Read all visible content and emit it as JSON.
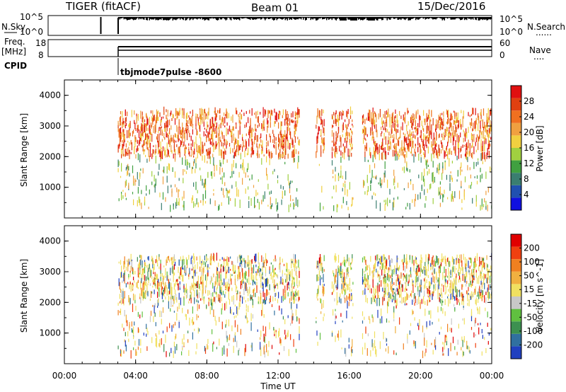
{
  "header": {
    "radar": "TIGER (fitACF)",
    "beam": "Beam 01",
    "date": "15/Dec/2016"
  },
  "labels": {
    "nsky": "N.Sky",
    "nsearch": "N.Search",
    "nsearch_dots": "......",
    "freq": "Freq.",
    "mhz": "[MHz]",
    "nave": "Nave",
    "nave_dots": "....",
    "cpid": "CPID",
    "cpid_value": "tbjmode7pulse -8600"
  },
  "noise_panel": {
    "left_ticks": [
      "10^5",
      "10^0"
    ],
    "right_ticks": [
      "10^5",
      "10^0"
    ]
  },
  "freq_panel": {
    "left_ticks": [
      "18",
      "8"
    ],
    "right_ticks": [
      "60",
      "0"
    ]
  },
  "colors": {
    "power_scale": [
      "#1010e0",
      "#2050b0",
      "#3a7e70",
      "#40a040",
      "#a0d040",
      "#f0d040",
      "#f0a040",
      "#f07020",
      "#e04010",
      "#e01010"
    ],
    "velocity_scale": [
      "#2040c0",
      "#3070a0",
      "#3c9050",
      "#60c040",
      "#c8c8c8",
      "#f0e060",
      "#f0b040",
      "#f08020",
      "#f04010",
      "#e00000"
    ]
  },
  "chart_data": [
    {
      "type": "heatmap",
      "panel": "power",
      "ylabel": "Slant Range [km]",
      "ylim": [
        0,
        4500
      ],
      "yticks": [
        "1000",
        "2000",
        "3000",
        "4000"
      ],
      "colorbar_label": "Power [dB]",
      "colorbar_ticks": [
        "4",
        "8",
        "12",
        "16",
        "20",
        "24",
        "28"
      ],
      "data_gaps_hours": [
        [
          13.2,
          14.1
        ],
        [
          14.6,
          15.0
        ],
        [
          16.2,
          16.7
        ]
      ],
      "range_band_km": [
        2000,
        3500
      ]
    },
    {
      "type": "heatmap",
      "panel": "velocity",
      "ylabel": "Slant Range [km]",
      "ylim": [
        0,
        4500
      ],
      "yticks": [
        "1000",
        "2000",
        "3000",
        "4000"
      ],
      "colorbar_label": "Velocity [m s^-1]",
      "colorbar_ticks": [
        "200",
        "100",
        "50",
        "15",
        "-15",
        "-50",
        "-100",
        "-200"
      ],
      "xlabel": "Time UT",
      "xticks": [
        "00:00",
        "04:00",
        "08:00",
        "12:00",
        "16:00",
        "20:00",
        "00:00"
      ]
    }
  ]
}
